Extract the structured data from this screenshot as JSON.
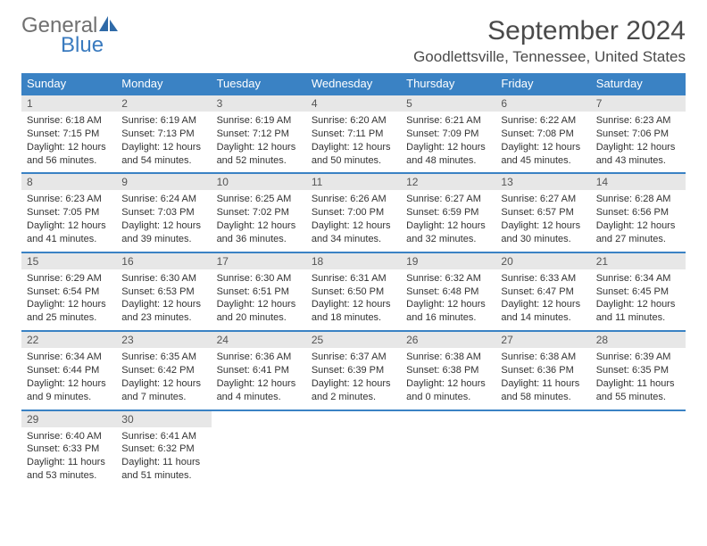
{
  "logo": {
    "line1": "General",
    "line2": "Blue"
  },
  "title": "September 2024",
  "location": "Goodlettsville, Tennessee, United States",
  "header_bg": "#3a82c4",
  "daynames": [
    "Sunday",
    "Monday",
    "Tuesday",
    "Wednesday",
    "Thursday",
    "Friday",
    "Saturday"
  ],
  "weeks": [
    [
      {
        "n": "1",
        "sr": "Sunrise: 6:18 AM",
        "ss": "Sunset: 7:15 PM",
        "d1": "Daylight: 12 hours",
        "d2": "and 56 minutes."
      },
      {
        "n": "2",
        "sr": "Sunrise: 6:19 AM",
        "ss": "Sunset: 7:13 PM",
        "d1": "Daylight: 12 hours",
        "d2": "and 54 minutes."
      },
      {
        "n": "3",
        "sr": "Sunrise: 6:19 AM",
        "ss": "Sunset: 7:12 PM",
        "d1": "Daylight: 12 hours",
        "d2": "and 52 minutes."
      },
      {
        "n": "4",
        "sr": "Sunrise: 6:20 AM",
        "ss": "Sunset: 7:11 PM",
        "d1": "Daylight: 12 hours",
        "d2": "and 50 minutes."
      },
      {
        "n": "5",
        "sr": "Sunrise: 6:21 AM",
        "ss": "Sunset: 7:09 PM",
        "d1": "Daylight: 12 hours",
        "d2": "and 48 minutes."
      },
      {
        "n": "6",
        "sr": "Sunrise: 6:22 AM",
        "ss": "Sunset: 7:08 PM",
        "d1": "Daylight: 12 hours",
        "d2": "and 45 minutes."
      },
      {
        "n": "7",
        "sr": "Sunrise: 6:23 AM",
        "ss": "Sunset: 7:06 PM",
        "d1": "Daylight: 12 hours",
        "d2": "and 43 minutes."
      }
    ],
    [
      {
        "n": "8",
        "sr": "Sunrise: 6:23 AM",
        "ss": "Sunset: 7:05 PM",
        "d1": "Daylight: 12 hours",
        "d2": "and 41 minutes."
      },
      {
        "n": "9",
        "sr": "Sunrise: 6:24 AM",
        "ss": "Sunset: 7:03 PM",
        "d1": "Daylight: 12 hours",
        "d2": "and 39 minutes."
      },
      {
        "n": "10",
        "sr": "Sunrise: 6:25 AM",
        "ss": "Sunset: 7:02 PM",
        "d1": "Daylight: 12 hours",
        "d2": "and 36 minutes."
      },
      {
        "n": "11",
        "sr": "Sunrise: 6:26 AM",
        "ss": "Sunset: 7:00 PM",
        "d1": "Daylight: 12 hours",
        "d2": "and 34 minutes."
      },
      {
        "n": "12",
        "sr": "Sunrise: 6:27 AM",
        "ss": "Sunset: 6:59 PM",
        "d1": "Daylight: 12 hours",
        "d2": "and 32 minutes."
      },
      {
        "n": "13",
        "sr": "Sunrise: 6:27 AM",
        "ss": "Sunset: 6:57 PM",
        "d1": "Daylight: 12 hours",
        "d2": "and 30 minutes."
      },
      {
        "n": "14",
        "sr": "Sunrise: 6:28 AM",
        "ss": "Sunset: 6:56 PM",
        "d1": "Daylight: 12 hours",
        "d2": "and 27 minutes."
      }
    ],
    [
      {
        "n": "15",
        "sr": "Sunrise: 6:29 AM",
        "ss": "Sunset: 6:54 PM",
        "d1": "Daylight: 12 hours",
        "d2": "and 25 minutes."
      },
      {
        "n": "16",
        "sr": "Sunrise: 6:30 AM",
        "ss": "Sunset: 6:53 PM",
        "d1": "Daylight: 12 hours",
        "d2": "and 23 minutes."
      },
      {
        "n": "17",
        "sr": "Sunrise: 6:30 AM",
        "ss": "Sunset: 6:51 PM",
        "d1": "Daylight: 12 hours",
        "d2": "and 20 minutes."
      },
      {
        "n": "18",
        "sr": "Sunrise: 6:31 AM",
        "ss": "Sunset: 6:50 PM",
        "d1": "Daylight: 12 hours",
        "d2": "and 18 minutes."
      },
      {
        "n": "19",
        "sr": "Sunrise: 6:32 AM",
        "ss": "Sunset: 6:48 PM",
        "d1": "Daylight: 12 hours",
        "d2": "and 16 minutes."
      },
      {
        "n": "20",
        "sr": "Sunrise: 6:33 AM",
        "ss": "Sunset: 6:47 PM",
        "d1": "Daylight: 12 hours",
        "d2": "and 14 minutes."
      },
      {
        "n": "21",
        "sr": "Sunrise: 6:34 AM",
        "ss": "Sunset: 6:45 PM",
        "d1": "Daylight: 12 hours",
        "d2": "and 11 minutes."
      }
    ],
    [
      {
        "n": "22",
        "sr": "Sunrise: 6:34 AM",
        "ss": "Sunset: 6:44 PM",
        "d1": "Daylight: 12 hours",
        "d2": "and 9 minutes."
      },
      {
        "n": "23",
        "sr": "Sunrise: 6:35 AM",
        "ss": "Sunset: 6:42 PM",
        "d1": "Daylight: 12 hours",
        "d2": "and 7 minutes."
      },
      {
        "n": "24",
        "sr": "Sunrise: 6:36 AM",
        "ss": "Sunset: 6:41 PM",
        "d1": "Daylight: 12 hours",
        "d2": "and 4 minutes."
      },
      {
        "n": "25",
        "sr": "Sunrise: 6:37 AM",
        "ss": "Sunset: 6:39 PM",
        "d1": "Daylight: 12 hours",
        "d2": "and 2 minutes."
      },
      {
        "n": "26",
        "sr": "Sunrise: 6:38 AM",
        "ss": "Sunset: 6:38 PM",
        "d1": "Daylight: 12 hours",
        "d2": "and 0 minutes."
      },
      {
        "n": "27",
        "sr": "Sunrise: 6:38 AM",
        "ss": "Sunset: 6:36 PM",
        "d1": "Daylight: 11 hours",
        "d2": "and 58 minutes."
      },
      {
        "n": "28",
        "sr": "Sunrise: 6:39 AM",
        "ss": "Sunset: 6:35 PM",
        "d1": "Daylight: 11 hours",
        "d2": "and 55 minutes."
      }
    ],
    [
      {
        "n": "29",
        "sr": "Sunrise: 6:40 AM",
        "ss": "Sunset: 6:33 PM",
        "d1": "Daylight: 11 hours",
        "d2": "and 53 minutes."
      },
      {
        "n": "30",
        "sr": "Sunrise: 6:41 AM",
        "ss": "Sunset: 6:32 PM",
        "d1": "Daylight: 11 hours",
        "d2": "and 51 minutes."
      },
      {
        "blank": true
      },
      {
        "blank": true
      },
      {
        "blank": true
      },
      {
        "blank": true
      },
      {
        "blank": true
      }
    ]
  ]
}
